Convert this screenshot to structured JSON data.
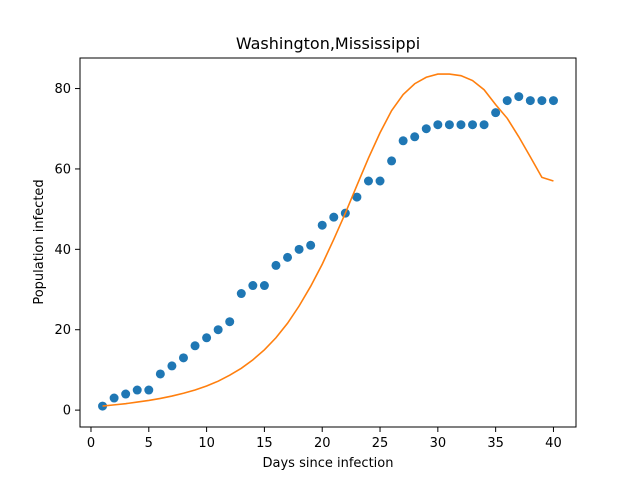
{
  "chart_data": {
    "type": "scatter",
    "title": "Washington,Mississippi",
    "xlabel": "Days since infection",
    "ylabel": "Population infected",
    "xlim": [
      -0.95,
      41.95
    ],
    "ylim": [
      -4.2,
      87.6
    ],
    "xticks": [
      0,
      5,
      10,
      15,
      20,
      25,
      30,
      35,
      40
    ],
    "yticks": [
      0,
      20,
      40,
      60,
      80
    ],
    "grid": false,
    "legend": "none",
    "series": [
      {
        "kind": "scatter",
        "color": "#1f77b4",
        "x": [
          1,
          2,
          3,
          4,
          5,
          6,
          7,
          8,
          9,
          10,
          11,
          12,
          13,
          14,
          15,
          16,
          17,
          18,
          19,
          20,
          21,
          22,
          23,
          24,
          25,
          26,
          27,
          28,
          29,
          30,
          31,
          32,
          33,
          34,
          35,
          36,
          37,
          38,
          39,
          40
        ],
        "y": [
          1,
          3,
          4,
          5,
          5,
          9,
          11,
          13,
          16,
          18,
          20,
          22,
          29,
          31,
          31,
          36,
          38,
          40,
          41,
          46,
          48,
          49,
          53,
          57,
          57,
          62,
          67,
          68,
          70,
          71,
          71,
          71,
          71,
          71,
          74,
          77,
          78,
          77,
          77,
          77
        ]
      },
      {
        "kind": "line",
        "color": "#ff7f0e",
        "x": [
          1,
          2,
          3,
          4,
          5,
          6,
          7,
          8,
          9,
          10,
          11,
          12,
          13,
          14,
          15,
          16,
          17,
          18,
          19,
          20,
          21,
          22,
          23,
          24,
          25,
          26,
          27,
          28,
          29,
          30,
          31,
          32,
          33,
          34,
          35,
          36,
          37,
          38,
          39,
          40
        ],
        "y": [
          1.0,
          1.3,
          1.6,
          2.0,
          2.4,
          2.9,
          3.5,
          4.2,
          5.0,
          6.0,
          7.2,
          8.7,
          10.4,
          12.5,
          15.0,
          18.0,
          21.6,
          25.9,
          30.8,
          36.3,
          42.5,
          49.0,
          55.9,
          62.7,
          69.0,
          74.5,
          78.5,
          81.2,
          82.8,
          83.6,
          83.6,
          83.2,
          82.0,
          79.7,
          76.0,
          72.6,
          68.0,
          63.0,
          57.9,
          57.0
        ]
      }
    ]
  }
}
